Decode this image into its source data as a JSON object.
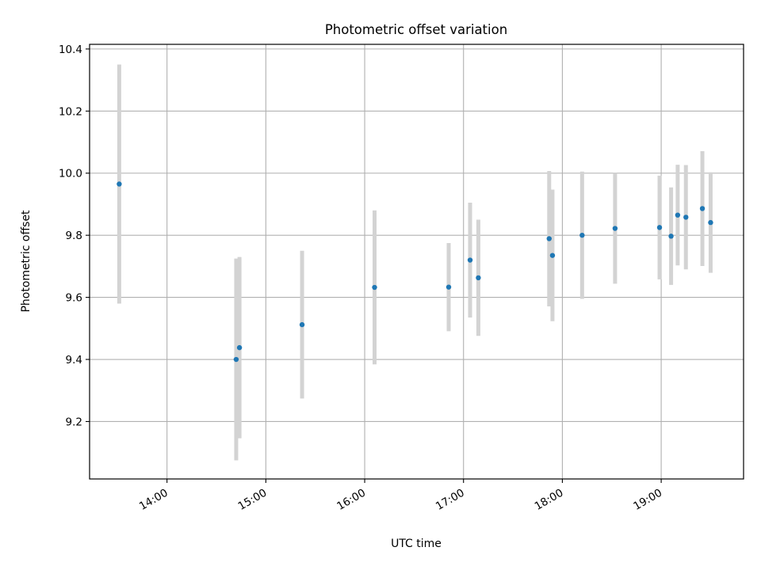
{
  "chart_data": {
    "type": "scatter",
    "title": "Photometric offset variation",
    "xlabel": "UTC time",
    "ylabel": "Photometric offset",
    "x_ticks": [
      "14:00",
      "15:00",
      "16:00",
      "17:00",
      "18:00",
      "19:00"
    ],
    "y_ticks": [
      "9.2",
      "9.4",
      "9.6",
      "9.8",
      "10.0",
      "10.2",
      "10.4"
    ],
    "xlim": [
      "13:13",
      "19:50"
    ],
    "ylim": [
      9.015,
      10.415
    ],
    "grid": true,
    "colors": {
      "point": "#1f77b4",
      "errorbar": "#d3d3d3",
      "grid": "#b0b0b0"
    },
    "points": [
      {
        "t": "13:31",
        "y": 9.965,
        "err": 0.385
      },
      {
        "t": "14:42",
        "y": 9.4,
        "err": 0.325
      },
      {
        "t": "14:44",
        "y": 9.438,
        "err": 0.292
      },
      {
        "t": "15:22",
        "y": 9.512,
        "err": 0.238
      },
      {
        "t": "16:06",
        "y": 9.632,
        "err": 0.248
      },
      {
        "t": "16:51",
        "y": 9.633,
        "err": 0.142
      },
      {
        "t": "17:04",
        "y": 9.72,
        "err": 0.185
      },
      {
        "t": "17:09",
        "y": 9.663,
        "err": 0.187
      },
      {
        "t": "17:52",
        "y": 9.789,
        "err": 0.218
      },
      {
        "t": "17:54",
        "y": 9.735,
        "err": 0.212
      },
      {
        "t": "18:12",
        "y": 9.8,
        "err": 0.205
      },
      {
        "t": "18:32",
        "y": 9.822,
        "err": 0.178
      },
      {
        "t": "18:59",
        "y": 9.825,
        "err": 0.167
      },
      {
        "t": "19:06",
        "y": 9.797,
        "err": 0.157
      },
      {
        "t": "19:10",
        "y": 9.865,
        "err": 0.162
      },
      {
        "t": "19:15",
        "y": 9.858,
        "err": 0.168
      },
      {
        "t": "19:25",
        "y": 9.886,
        "err": 0.185
      },
      {
        "t": "19:30",
        "y": 9.841,
        "err": 0.162
      }
    ]
  }
}
